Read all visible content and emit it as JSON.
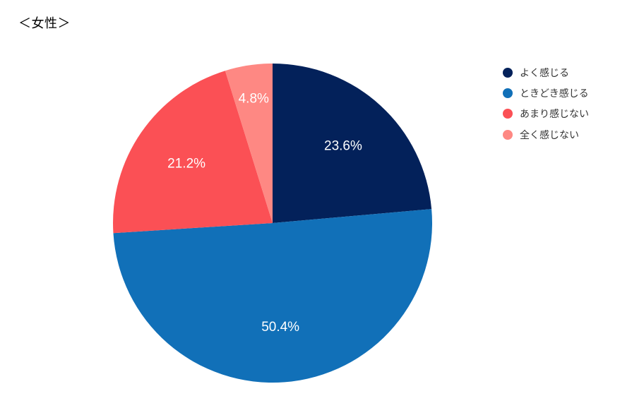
{
  "title": "＜女性＞",
  "chart_data": {
    "type": "pie",
    "slices": [
      {
        "name": "よく感じる",
        "value": 23.6,
        "label": "23.6%",
        "color": "#03215a"
      },
      {
        "name": "ときどき感じる",
        "value": 50.4,
        "label": "50.4%",
        "color": "#1170b8"
      },
      {
        "name": "あまり感じない",
        "value": 21.2,
        "label": "21.2%",
        "color": "#fb5055"
      },
      {
        "name": "全く感じない",
        "value": 4.8,
        "label": "4.8%",
        "color": "#fe8883"
      }
    ],
    "start": "12 o'clock",
    "direction": "clockwise",
    "legend_position": "top-right"
  }
}
